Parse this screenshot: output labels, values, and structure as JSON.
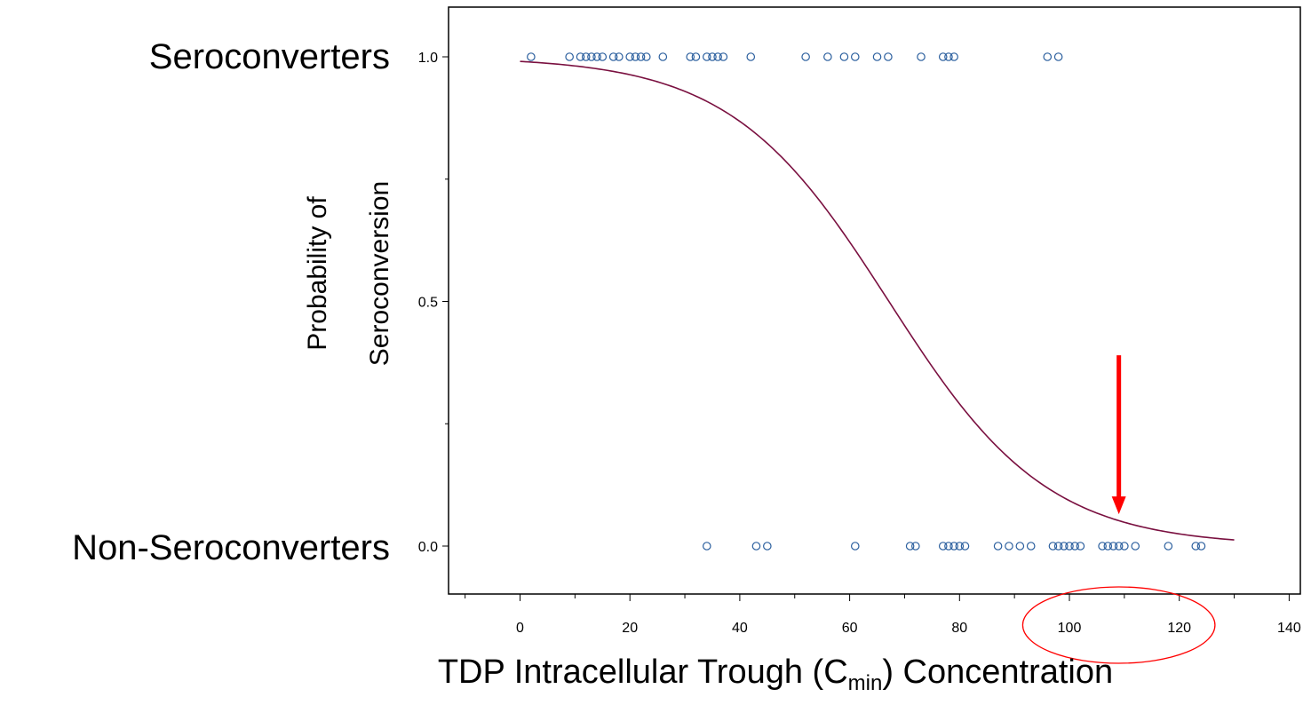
{
  "chart_data": {
    "type": "scatter",
    "ylabel_line1": "Probability of",
    "ylabel_line2": "Seroconversion",
    "xlabel": {
      "main": "TDP Intracellular Trough (C",
      "sub": "min",
      "tail": ") Concentration"
    },
    "group_labels": {
      "top": "Seroconverters",
      "bottom": "Non-Seroconverters"
    },
    "xlim": [
      -13,
      142
    ],
    "ylim": [
      -0.1,
      1.1
    ],
    "x_ticks": [
      0,
      20,
      40,
      60,
      80,
      100,
      120,
      140
    ],
    "x_minor_ticks": [
      -10,
      10,
      30,
      50,
      70,
      90,
      110,
      130
    ],
    "y_ticks": [
      {
        "value": 0.0,
        "label": "0.0"
      },
      {
        "value": 0.5,
        "label": "0.5"
      },
      {
        "value": 1.0,
        "label": "1.0"
      }
    ],
    "y_minor_ticks": [
      0.25,
      0.75
    ],
    "series": [
      {
        "kind": "points",
        "y": 1,
        "x": [
          2,
          9,
          11,
          12,
          13,
          14,
          15,
          17,
          18,
          20,
          21,
          22,
          23,
          26,
          31,
          32,
          34,
          35,
          36,
          37,
          42,
          52,
          56,
          59,
          61,
          65,
          67,
          73,
          77,
          78,
          79,
          96,
          98
        ],
        "color": "#2b5f9e"
      },
      {
        "kind": "points",
        "y": 0,
        "x": [
          34,
          43,
          45,
          61,
          71,
          72,
          77,
          78,
          79,
          80,
          81,
          87,
          89,
          91,
          93,
          97,
          98,
          99,
          100,
          101,
          102,
          106,
          107,
          108,
          109,
          110,
          112,
          118,
          123,
          124
        ],
        "color": "#2b5f9e"
      },
      {
        "kind": "logistic_fit",
        "x_range": [
          0,
          130
        ],
        "intercept": 4.66,
        "slope": -0.0694,
        "color": "#7a1040"
      }
    ],
    "annotations": [
      {
        "type": "arrow",
        "x": 109,
        "y_from": 0.39,
        "y_to": 0.065,
        "color": "#ff0000"
      },
      {
        "type": "ellipse",
        "cx": 109,
        "rx": 17.5,
        "color": "#ff0000"
      }
    ]
  }
}
